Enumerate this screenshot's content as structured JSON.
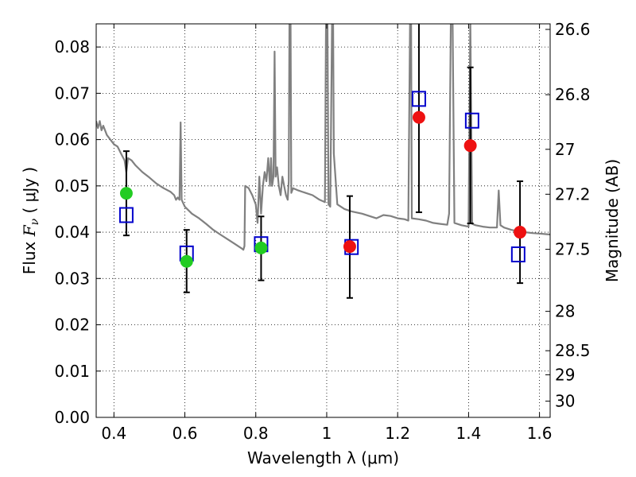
{
  "chart_data": {
    "type": "scatter",
    "xlabel": "Wavelength  λ (μm)",
    "ylabel_left": {
      "prefix": "Flux  ",
      "symbol": "F",
      "sub": "ν",
      "unit": "  ( μJy )"
    },
    "ylabel_right": "Magnitude (AB)",
    "xlim": [
      0.35,
      1.63
    ],
    "ylim": [
      0.0,
      0.085
    ],
    "grid": true,
    "x_ticks": [
      0.4,
      0.6,
      0.8,
      1.0,
      1.2,
      1.4,
      1.6
    ],
    "x_tick_labels": [
      "0.4",
      "0.6",
      "0.8",
      "1",
      "1.2",
      "1.4",
      "1.6"
    ],
    "y_ticks": [
      0.0,
      0.01,
      0.02,
      0.03,
      0.04,
      0.05,
      0.06,
      0.07,
      0.08
    ],
    "y_tick_labels": [
      "0.00",
      "0.01",
      "0.02",
      "0.03",
      "0.04",
      "0.05",
      "0.06",
      "0.07",
      "0.08"
    ],
    "right_ticks": [
      {
        "label": "26.6",
        "flux": 0.0838
      },
      {
        "label": "26.8",
        "flux": 0.0697
      },
      {
        "label": "27",
        "flux": 0.0579
      },
      {
        "label": "27.2",
        "flux": 0.0482
      },
      {
        "label": "27.5",
        "flux": 0.0363
      },
      {
        "label": "28",
        "flux": 0.0229
      },
      {
        "label": "28.5",
        "flux": 0.0144
      },
      {
        "label": "29",
        "flux": 0.0092
      },
      {
        "label": "30",
        "flux": 0.0035
      }
    ],
    "colors": {
      "spectrum": "#808080",
      "model": "#0000cc",
      "green": "#22cc22",
      "red": "#ee1111",
      "errorbar": "#000000",
      "grid": "#000000"
    },
    "series": [
      {
        "marker": "open-square",
        "color": "#0000cc",
        "points": [
          {
            "x": 0.435,
            "y": 0.0437
          },
          {
            "x": 0.605,
            "y": 0.0354
          },
          {
            "x": 0.815,
            "y": 0.0374
          },
          {
            "x": 1.07,
            "y": 0.0368
          },
          {
            "x": 1.26,
            "y": 0.0688
          },
          {
            "x": 1.41,
            "y": 0.0641
          },
          {
            "x": 1.54,
            "y": 0.0352
          }
        ]
      },
      {
        "marker": "filled-circle",
        "color": "#22cc22",
        "points": [
          {
            "x": 0.435,
            "y": 0.0484,
            "err_lo": 0.0393,
            "err_hi": 0.0575
          },
          {
            "x": 0.605,
            "y": 0.0337,
            "err_lo": 0.027,
            "err_hi": 0.0405
          },
          {
            "x": 0.815,
            "y": 0.0366,
            "err_lo": 0.0296,
            "err_hi": 0.0434
          }
        ]
      },
      {
        "marker": "filled-circle",
        "color": "#ee1111",
        "points": [
          {
            "x": 1.065,
            "y": 0.0369,
            "err_lo": 0.0258,
            "err_hi": 0.0478
          },
          {
            "x": 1.26,
            "y": 0.0648,
            "err_lo": 0.0443,
            "err_hi": 0.087
          },
          {
            "x": 1.405,
            "y": 0.0587,
            "err_lo": 0.0419,
            "err_hi": 0.0756
          },
          {
            "x": 1.545,
            "y": 0.04,
            "err_lo": 0.029,
            "err_hi": 0.051
          }
        ]
      }
    ],
    "spectrum": [
      [
        0.35,
        0.064
      ],
      [
        0.355,
        0.0625
      ],
      [
        0.36,
        0.064
      ],
      [
        0.365,
        0.062
      ],
      [
        0.37,
        0.063
      ],
      [
        0.38,
        0.061
      ],
      [
        0.39,
        0.06
      ],
      [
        0.4,
        0.059
      ],
      [
        0.41,
        0.0585
      ],
      [
        0.42,
        0.057
      ],
      [
        0.43,
        0.0555
      ],
      [
        0.435,
        0.053
      ],
      [
        0.44,
        0.056
      ],
      [
        0.45,
        0.0555
      ],
      [
        0.46,
        0.0545
      ],
      [
        0.48,
        0.053
      ],
      [
        0.5,
        0.0518
      ],
      [
        0.52,
        0.0505
      ],
      [
        0.54,
        0.0495
      ],
      [
        0.56,
        0.0487
      ],
      [
        0.57,
        0.048
      ],
      [
        0.575,
        0.047
      ],
      [
        0.58,
        0.0475
      ],
      [
        0.585,
        0.047
      ],
      [
        0.588,
        0.0637
      ],
      [
        0.591,
        0.047
      ],
      [
        0.6,
        0.0455
      ],
      [
        0.62,
        0.044
      ],
      [
        0.64,
        0.043
      ],
      [
        0.66,
        0.0418
      ],
      [
        0.68,
        0.0405
      ],
      [
        0.7,
        0.0395
      ],
      [
        0.72,
        0.0385
      ],
      [
        0.74,
        0.0375
      ],
      [
        0.76,
        0.0365
      ],
      [
        0.765,
        0.0362
      ],
      [
        0.768,
        0.037
      ],
      [
        0.77,
        0.05
      ],
      [
        0.78,
        0.0495
      ],
      [
        0.79,
        0.048
      ],
      [
        0.8,
        0.046
      ],
      [
        0.805,
        0.042
      ],
      [
        0.81,
        0.052
      ],
      [
        0.815,
        0.044
      ],
      [
        0.82,
        0.05
      ],
      [
        0.825,
        0.053
      ],
      [
        0.83,
        0.051
      ],
      [
        0.835,
        0.056
      ],
      [
        0.84,
        0.05
      ],
      [
        0.843,
        0.056
      ],
      [
        0.846,
        0.05
      ],
      [
        0.85,
        0.052
      ],
      [
        0.853,
        0.079
      ],
      [
        0.856,
        0.052
      ],
      [
        0.86,
        0.054
      ],
      [
        0.865,
        0.05
      ],
      [
        0.87,
        0.048
      ],
      [
        0.875,
        0.052
      ],
      [
        0.88,
        0.05
      ],
      [
        0.885,
        0.048
      ],
      [
        0.89,
        0.047
      ],
      [
        0.893,
        0.051
      ],
      [
        0.895,
        0.086
      ],
      [
        0.898,
        0.086
      ],
      [
        0.9,
        0.0485
      ],
      [
        0.905,
        0.0495
      ],
      [
        0.92,
        0.049
      ],
      [
        0.94,
        0.0485
      ],
      [
        0.96,
        0.048
      ],
      [
        0.98,
        0.047
      ],
      [
        0.995,
        0.0465
      ],
      [
        0.998,
        0.086
      ],
      [
        1.002,
        0.086
      ],
      [
        1.005,
        0.046
      ],
      [
        1.01,
        0.0455
      ],
      [
        1.015,
        0.086
      ],
      [
        1.018,
        0.086
      ],
      [
        1.02,
        0.057
      ],
      [
        1.03,
        0.046
      ],
      [
        1.05,
        0.045
      ],
      [
        1.07,
        0.0445
      ],
      [
        1.1,
        0.044
      ],
      [
        1.12,
        0.0435
      ],
      [
        1.14,
        0.043
      ],
      [
        1.16,
        0.0437
      ],
      [
        1.18,
        0.0435
      ],
      [
        1.2,
        0.043
      ],
      [
        1.22,
        0.0428
      ],
      [
        1.23,
        0.0425
      ],
      [
        1.235,
        0.086
      ],
      [
        1.238,
        0.086
      ],
      [
        1.24,
        0.043
      ],
      [
        1.26,
        0.0428
      ],
      [
        1.28,
        0.0425
      ],
      [
        1.3,
        0.042
      ],
      [
        1.32,
        0.0418
      ],
      [
        1.34,
        0.0416
      ],
      [
        1.345,
        0.044
      ],
      [
        1.35,
        0.086
      ],
      [
        1.355,
        0.086
      ],
      [
        1.36,
        0.042
      ],
      [
        1.38,
        0.0415
      ],
      [
        1.4,
        0.0412
      ],
      [
        1.405,
        0.086
      ],
      [
        1.41,
        0.0418
      ],
      [
        1.42,
        0.0415
      ],
      [
        1.44,
        0.0412
      ],
      [
        1.46,
        0.041
      ],
      [
        1.48,
        0.041
      ],
      [
        1.485,
        0.049
      ],
      [
        1.49,
        0.0415
      ],
      [
        1.5,
        0.041
      ],
      [
        1.52,
        0.0405
      ],
      [
        1.54,
        0.0402
      ],
      [
        1.56,
        0.04
      ],
      [
        1.58,
        0.0398
      ],
      [
        1.6,
        0.0397
      ],
      [
        1.63,
        0.0395
      ]
    ]
  }
}
